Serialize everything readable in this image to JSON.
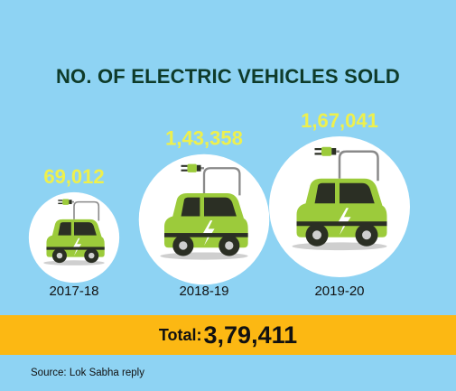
{
  "title": "NO. OF ELECTRIC VEHICLES SOLD",
  "colors": {
    "background": "#8ed3f3",
    "title": "#0e3b2a",
    "value_text": "#eef04d",
    "circle": "#ffffff",
    "car_body": "#9ccb3b",
    "car_dark": "#2b2f24",
    "total_bar": "#fcb813"
  },
  "icons": [
    "electric-car-icon",
    "plug-icon",
    "lightning-bolt-icon"
  ],
  "total": {
    "label": "Total:",
    "value": "3,79,411"
  },
  "source": "Source: Lok Sabha reply",
  "chart_data": {
    "type": "bubble",
    "title": "NO. OF ELECTRIC VEHICLES SOLD",
    "categories": [
      "2017-18",
      "2018-19",
      "2019-20"
    ],
    "values": [
      69012,
      143358,
      167041
    ],
    "value_labels": [
      "69,012",
      "1,43,358",
      "1,67,041"
    ],
    "total": 379411
  }
}
